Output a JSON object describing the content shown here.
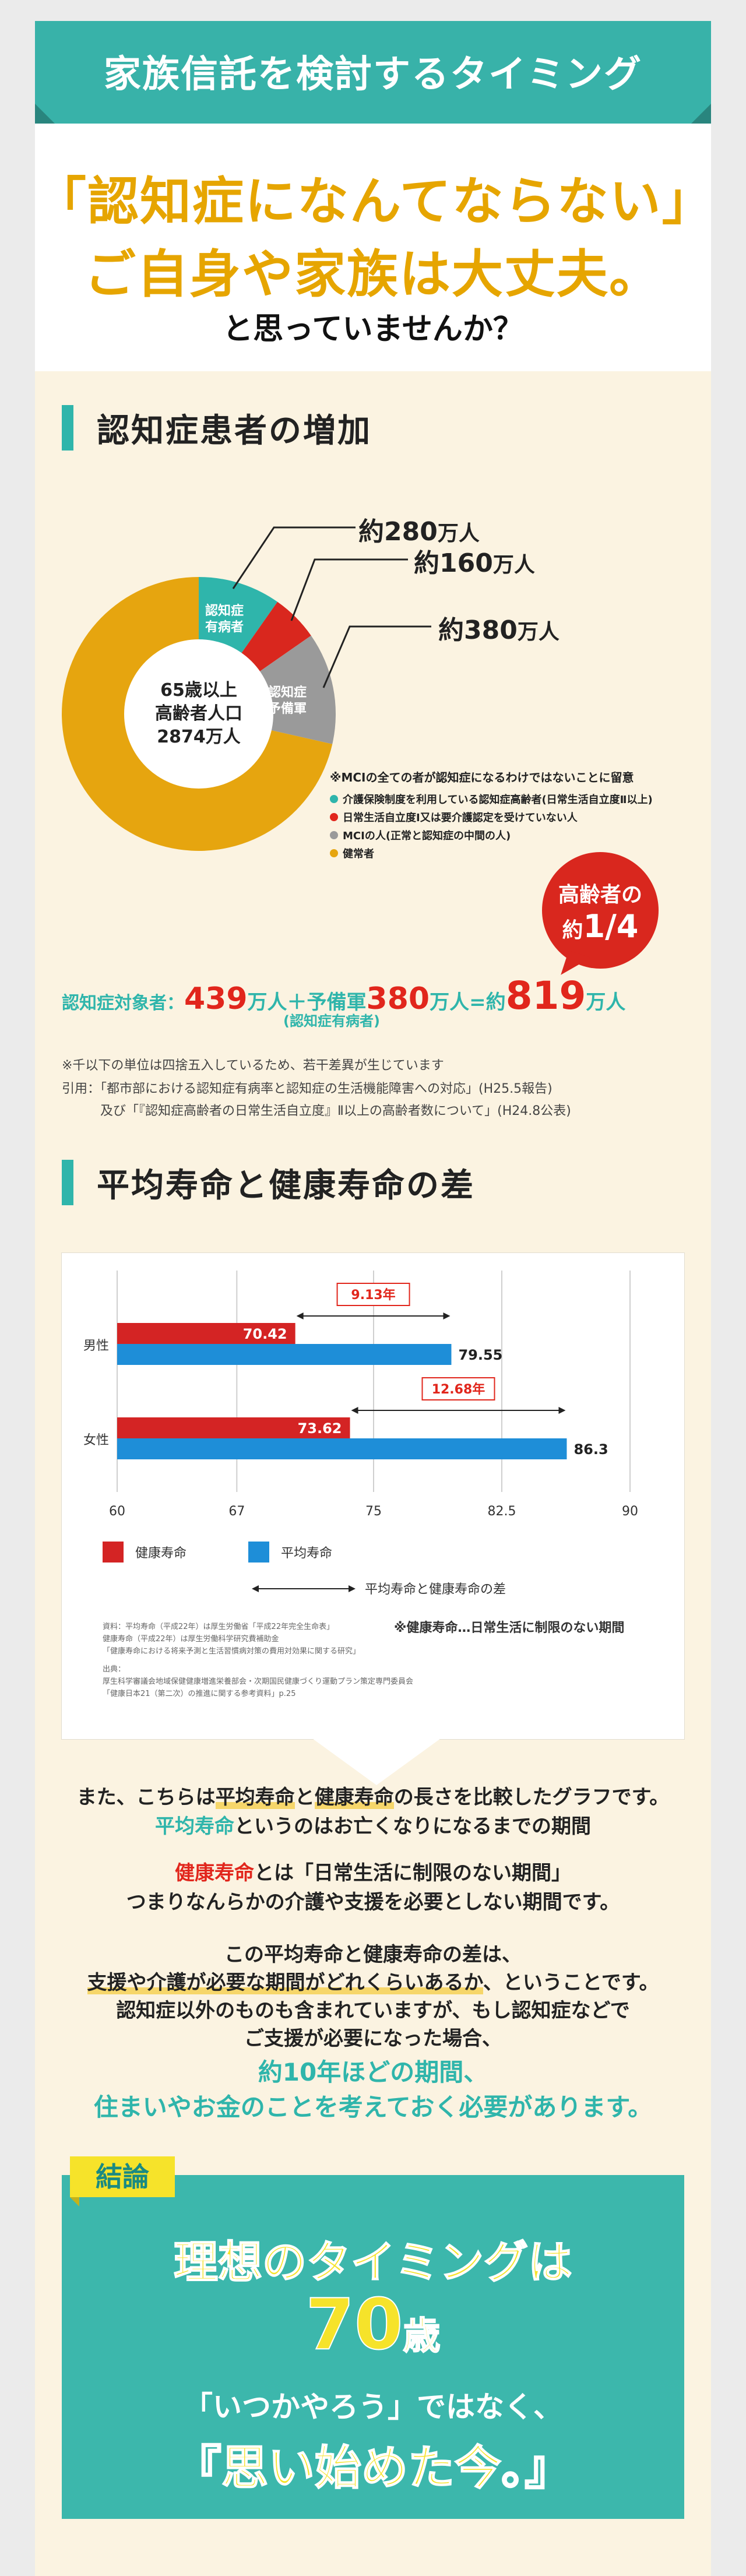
{
  "header": {
    "title": "家族信託を検討するタイミング",
    "hook_line1": "「認知症になんてならない」",
    "hook_line2": "ご自身や家族は大丈夫。",
    "hook_line3": "と思っていませんか？"
  },
  "section1": {
    "heading": "認知症患者の増加",
    "pie_center": [
      "65歳以上",
      "高齢者人口",
      "2874万人"
    ],
    "slice_labels": {
      "mild": "認知症\n有病者",
      "mci": "認知症\n予備軍"
    },
    "callouts": {
      "c280": {
        "num": "約280",
        "unit": "万人"
      },
      "c160": {
        "num": "約160",
        "unit": "万人"
      },
      "c380": {
        "num": "約380",
        "unit": "万人"
      }
    },
    "note_head": "※MCIの全ての者が認知症になるわけではないことに留意",
    "legend": [
      {
        "text": "介護保険制度を利用している認知症高齢者(日常生活自立度Ⅱ以上)",
        "color": "#2fb5ab"
      },
      {
        "text": "日常生活自立度Ⅰ又は要介護認定を受けていない人",
        "color": "#e1261c"
      },
      {
        "text": "MCIの人(正常と認知症の中間の人)",
        "color": "#9a9a9a"
      },
      {
        "text": "健常者",
        "color": "#e6a50f"
      }
    ],
    "bubble": {
      "line1": "高齢者の",
      "pre": "約",
      "frac": "1/4"
    },
    "total": {
      "label": "認知症対象者：",
      "n1": "439",
      "u1": "万人",
      "plus": "＋予備軍",
      "n2": "380",
      "u2": "万人",
      "eq": "=約",
      "n3": "819",
      "u3": "万人",
      "sub": "(認知症有病者)"
    },
    "footnote1": "※千以下の単位は四捨五入しているため、若干差異が生じています",
    "footnote2": "引用：「都市部における認知症有病率と認知症の生活機能障害への対応」(H25.5報告)",
    "footnote3": "及び「『認知症高齢者の日常生活自立度』Ⅱ以上の高齢者数について」(H24.8公表)"
  },
  "section2": {
    "heading": "平均寿命と健康寿命の差"
  },
  "chart_data": [
    {
      "type": "pie",
      "categories": [
        "認知症有病者(介護保険利用)",
        "日常生活自立度Ⅰ等",
        "MCI",
        "健常者"
      ],
      "values": [
        280,
        160,
        380,
        2054
      ],
      "total_label": "2874万人"
    },
    {
      "type": "bar",
      "orientation": "horizontal",
      "categories": [
        "男性",
        "女性"
      ],
      "series": [
        {
          "name": "健康寿命",
          "values": [
            70.42,
            73.62
          ],
          "color": "#d42424"
        },
        {
          "name": "平均寿命",
          "values": [
            79.55,
            86.3
          ],
          "color": "#1e8ed8"
        }
      ],
      "xlim": [
        60,
        90
      ],
      "xticks": [
        "60",
        "67",
        "75",
        "82.5",
        "90"
      ],
      "gaps": [
        "9.13年",
        "12.68年"
      ],
      "legend_gap": "平均寿命と健康寿命の差",
      "note": "※健康寿命…日常生活に制限のない期間",
      "sources": [
        "資料：平均寿命（平成22年）は厚生労働省「平成22年完全生命表」",
        "健康寿命（平成22年）は厚生労働科学研究費補助金",
        "「健康寿命における将来予測と生活習慣病対策の費用対効果に関する研究」",
        "出典：",
        "厚生科学審議会地域保健健康増進栄養部会・次期国民健康づくり運動プラン策定専門委員会",
        "「健康日本21（第二次）の推進に関する参考資料」p.25"
      ]
    }
  ],
  "body": {
    "l1a": "また、こちらは",
    "l1b": "平均寿命",
    "l1c": "と",
    "l1d": "健康寿命",
    "l1e": "の長さを比較したグラフです。",
    "l2a": "平均寿命",
    "l2b": "というのはお亡くなりになるまでの期間",
    "l3a": "健康寿命",
    "l3b": "とは「日常生活に制限のない期間」",
    "l4": "つまりなんらかの介護や支援を必要としない期間です。",
    "l5": "この平均寿命と健康寿命の差は、",
    "l6a": "支援や介護が必要な期間がどれくらいあるか",
    "l6b": "、ということです。",
    "l7": "認知症以外のものも含まれていますが、もし認知症などで",
    "l8": "ご支援が必要になった場合、",
    "l9": "約10年ほどの期間、",
    "l10": "住まいやお金のことを考えておく必要があります。"
  },
  "conclusion": {
    "tag": "結論",
    "line1": "理想のタイミングは",
    "age": "70",
    "age_unit": "歳",
    "line3": "「いつかやろう」ではなく、",
    "line4": "『思い始めた今。』"
  }
}
